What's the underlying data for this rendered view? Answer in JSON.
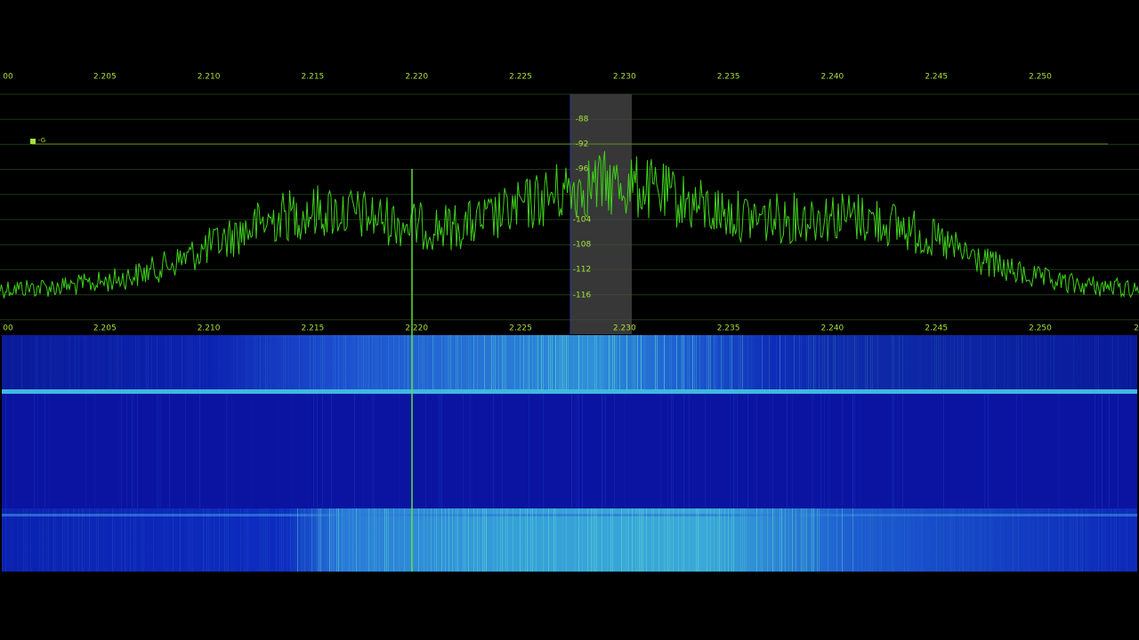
{
  "frequency_scale_top": {
    "labels": [
      "00",
      "2.205",
      "2.210",
      "2.215",
      "2.220",
      "2.225",
      "2.230",
      "2.235",
      "2.240",
      "2.245",
      "2.250"
    ]
  },
  "frequency_scale_bottom": {
    "labels": [
      "00",
      "2.205",
      "2.210",
      "2.215",
      "2.220",
      "2.225",
      "2.230",
      "2.235",
      "2.240",
      "2.245",
      "2.250",
      "2"
    ]
  },
  "level_scale": {
    "labels": [
      "-88",
      "-92",
      "-96",
      "-104",
      "-108",
      "-112",
      "-116"
    ]
  },
  "squelch_marker": {
    "label": "-G"
  }
}
